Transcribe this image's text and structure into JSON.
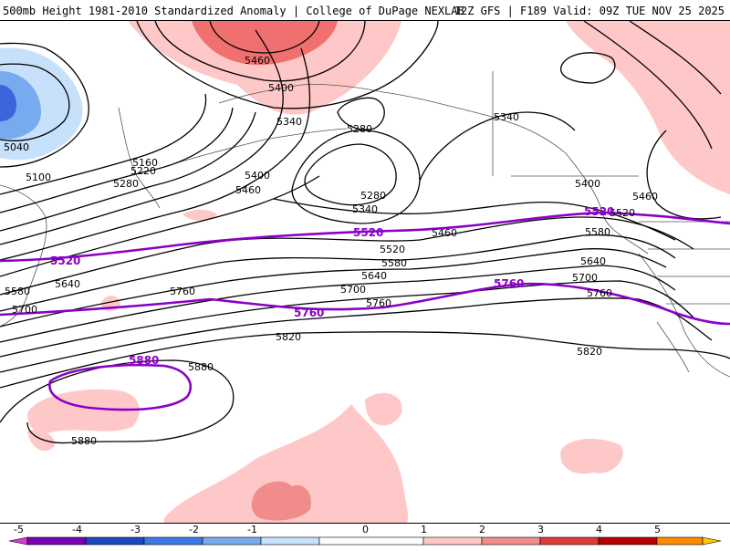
{
  "header": {
    "left": "500mb Height 1981-2010 Standardized Anomaly | College of DuPage NEXLAB",
    "right": "12Z GFS | F189 Valid: 09Z TUE NOV 25 2025"
  },
  "contour_labels": {
    "l5460_top": "5460",
    "l5400_top": "5400",
    "l5340_top": "5340",
    "l5280_top": "5280",
    "l5340_ak": "5340",
    "l5040": "5040",
    "l5100": "5100",
    "l5160": "5160",
    "l5220": "5220",
    "l5280": "5280",
    "l5400": "5400",
    "l5460": "5460",
    "l5280_b": "5280",
    "l5340_b": "5340",
    "l5520_left": "5520",
    "l5520_mid": "5520",
    "l5520_right": "5520",
    "l5460_mid": "5460",
    "l5520_b": "5520",
    "l5580": "5580",
    "l5640": "5640",
    "l5700": "5700",
    "l5760": "5760",
    "l5760_p1": "5760",
    "l5760_p2": "5760",
    "l5820": "5820",
    "l5820_r": "5820",
    "l5880_p": "5880",
    "l5880_a": "5880",
    "l5880_b": "5880",
    "l5580_left": "5580",
    "l5700_left": "5700",
    "l5640_left": "5640",
    "l5760_left": "5760",
    "l5400_r": "5400",
    "l5460_r": "5460",
    "l5580_r": "5580",
    "l5640_r": "5640",
    "l5700_r": "5700",
    "l5760_r": "5760"
  },
  "colorbar": {
    "ticks": [
      "-5",
      "-4",
      "-3",
      "-2",
      "-1",
      "0",
      "1",
      "2",
      "3",
      "4",
      "5"
    ],
    "colors": {
      "n5": "#d23cd2",
      "n4": "#7a00b4",
      "n3": "#1e46be",
      "n2": "#3c78e6",
      "n1": "#78aaf0",
      "n0": "#c8e1fa",
      "p0": "#ffffff",
      "p1": "#ffc8c8",
      "p2": "#f08c8c",
      "p3": "#dc3c3c",
      "p4": "#b40000",
      "p5": "#ff8c00",
      "p6": "#ffc800"
    }
  },
  "colors": {
    "contour": "#000000",
    "highlight_contour": "#8a00c8",
    "coast": "#555555",
    "pos_anom_1": "#ffc8c8",
    "pos_anom_2": "#f07070",
    "neg_anom_1": "#c8e1fa",
    "neg_anom_2": "#78aaf0",
    "neg_anom_3": "#3c64dc"
  }
}
